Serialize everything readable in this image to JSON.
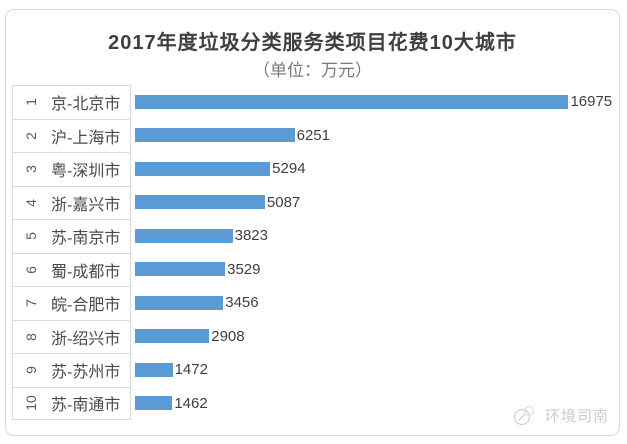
{
  "chart": {
    "title": "2017年度垃圾分类服务类项目花费10大城市",
    "subtitle": "（单位：万元）"
  },
  "chart_data": {
    "type": "bar",
    "orientation": "horizontal",
    "title": "2017年度垃圾分类服务类项目花费10大城市",
    "unit_note": "（单位：万元）",
    "unit": "万元",
    "ranks": [
      "1",
      "2",
      "3",
      "4",
      "5",
      "6",
      "7",
      "8",
      "9",
      "10"
    ],
    "categories": [
      "京-北京市",
      "沪-上海市",
      "粤-深圳市",
      "浙-嘉兴市",
      "苏-南京市",
      "蜀-成都市",
      "皖-合肥市",
      "浙-绍兴市",
      "苏-苏州市",
      "苏-南通市"
    ],
    "values": [
      16975,
      6251,
      5294,
      5087,
      3823,
      3529,
      3456,
      2908,
      1472,
      1462
    ],
    "xlim": [
      0,
      18720
    ],
    "value_labels_shown": true,
    "grid": "row-separators-on-category-axis-only",
    "legend_position": "none",
    "bar_color": "#5b9bd5"
  },
  "watermark": {
    "label": "环境司南",
    "icon": "compass-icon"
  },
  "colors": {
    "bar": "#5b9bd5",
    "border": "#d9d9d9",
    "title_text": "#3f3f3f",
    "subtitle_text": "#7a7a7a",
    "category_text": "#4a4a4a",
    "value_text": "#3f3f3f",
    "watermark_text": "#cccccc",
    "background": "#ffffff"
  }
}
